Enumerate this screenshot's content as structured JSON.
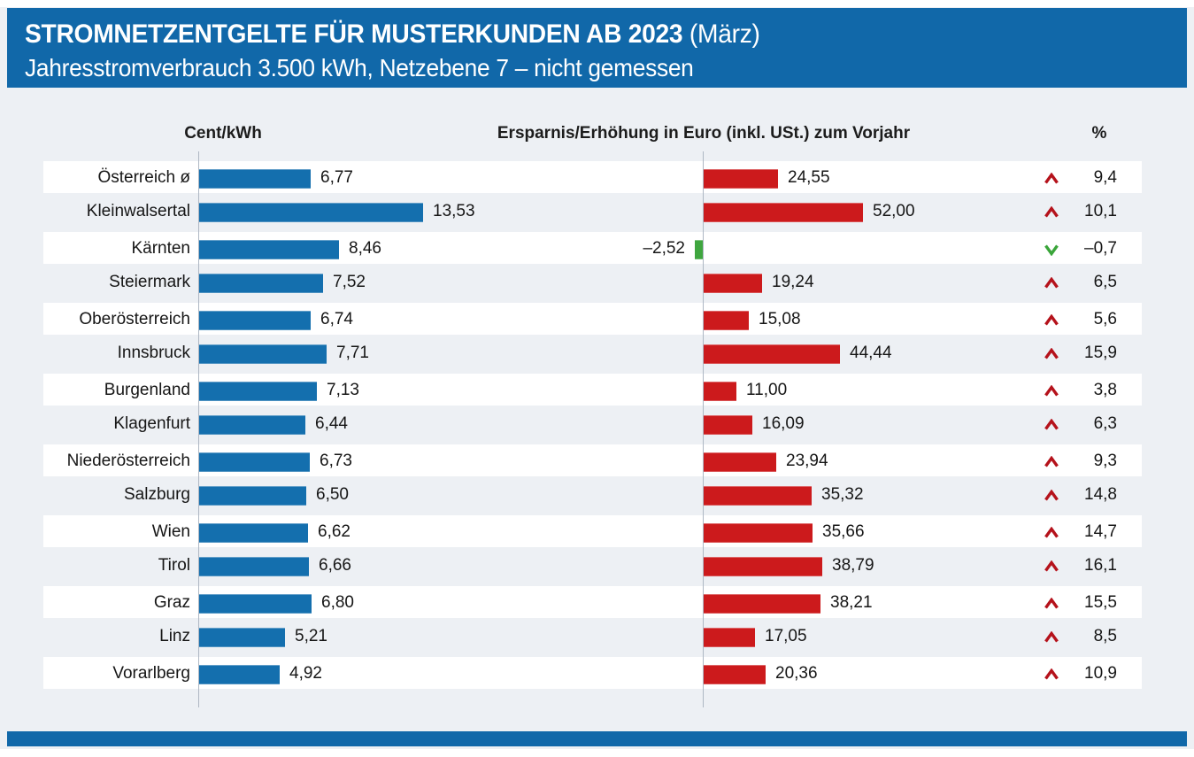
{
  "header": {
    "title": "STROMNETZENTGELTE FÜR MUSTERKUNDEN AB 2023",
    "title_suffix": " (März)",
    "subtitle": "Jahresstromverbrauch 3.500 kWh, Netzebene 7 – nicht gemessen"
  },
  "columns": {
    "left_unit": "Cent/kWh",
    "right_unit": "Ersparnis/Erhöhung in Euro (inkl. USt.) zum Vorjahr",
    "percent": "%"
  },
  "colors": {
    "banner_blue": "#1168a9",
    "bar_blue": "#146fae",
    "bar_red": "#cc1a1c",
    "bar_green": "#3fa63f",
    "arrow_up_red": "#b5121b",
    "arrow_down_green": "#3aa53a",
    "page_gray": "#edf0f4",
    "axis_gray": "#aeb7c3"
  },
  "chart_data": {
    "type": "bar",
    "orientation": "horizontal",
    "title": "Stromnetzentgelte für Musterkunden ab 2023 (März)",
    "subtitle": "Jahresstromverbrauch 3.500 kWh, Netzebene 7 – nicht gemessen",
    "categories": [
      "Österreich ø",
      "Kleinwalsertal",
      "Kärnten",
      "Steiermark",
      "Oberösterreich",
      "Innsbruck",
      "Burgenland",
      "Klagenfurt",
      "Niederösterreich",
      "Salzburg",
      "Wien",
      "Tirol",
      "Graz",
      "Linz",
      "Vorarlberg"
    ],
    "series": [
      {
        "name": "Cent/kWh",
        "values": [
          6.77,
          13.53,
          8.46,
          7.52,
          6.74,
          7.71,
          7.13,
          6.44,
          6.73,
          6.5,
          6.62,
          6.66,
          6.8,
          5.21,
          4.92
        ],
        "labels": [
          "6,77",
          "13,53",
          "8,46",
          "7,52",
          "6,74",
          "7,71",
          "7,13",
          "6,44",
          "6,73",
          "6,50",
          "6,62",
          "6,66",
          "6,80",
          "5,21",
          "4,92"
        ]
      },
      {
        "name": "Ersparnis/Erhöhung in Euro (inkl. USt.) zum Vorjahr",
        "values": [
          24.55,
          52.0,
          -2.52,
          19.24,
          15.08,
          44.44,
          11.0,
          16.09,
          23.94,
          35.32,
          35.66,
          38.79,
          38.21,
          17.05,
          20.36
        ],
        "labels": [
          "24,55",
          "52,00",
          "–2,52",
          "19,24",
          "15,08",
          "44,44",
          "11,00",
          "16,09",
          "23,94",
          "35,32",
          "35,66",
          "38,79",
          "38,21",
          "17,05",
          "20,36"
        ]
      },
      {
        "name": "%",
        "values": [
          9.4,
          10.1,
          -0.7,
          6.5,
          5.6,
          15.9,
          3.8,
          6.3,
          9.3,
          14.8,
          14.7,
          16.1,
          15.5,
          8.5,
          10.9
        ],
        "labels": [
          "9,4",
          "10,1",
          "–0,7",
          "6,5",
          "5,6",
          "15,9",
          "3,8",
          "6,3",
          "9,3",
          "14,8",
          "14,7",
          "16,1",
          "15,5",
          "8,5",
          "10,9"
        ]
      }
    ],
    "legend": "none",
    "grid": "off",
    "notes": "Negative values (Kärnten) shown as green bar left of axis with green down chevron; positive values red bar right of axis with red up chevron."
  }
}
